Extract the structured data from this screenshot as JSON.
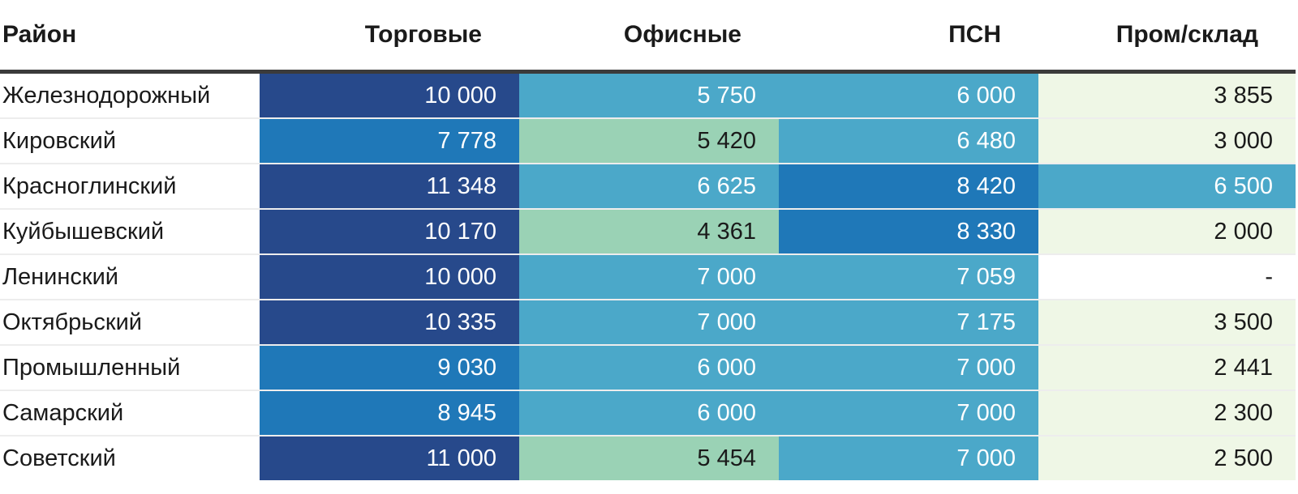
{
  "palette": {
    "navy": "#27498b",
    "blue": "#1f78b8",
    "teal": "#4ba8c9",
    "mint": "#9ad2b5",
    "pale": "#eff7e6",
    "blank": "#ffffff",
    "header_rule": "#3b3b3b",
    "text_dark": "#1a1a1a",
    "text_light": "#ffffff"
  },
  "table": {
    "columns": [
      "Район",
      "Торговые",
      "Офисные",
      "ПСН",
      "Пром/склад"
    ],
    "rows": [
      {
        "district": "Железнодорожный",
        "cells": [
          {
            "text": "10 000",
            "tone": "navy"
          },
          {
            "text": "5 750",
            "tone": "teal"
          },
          {
            "text": "6 000",
            "tone": "teal"
          },
          {
            "text": "3 855",
            "tone": "pale"
          }
        ]
      },
      {
        "district": "Кировский",
        "cells": [
          {
            "text": "7 778",
            "tone": "blue"
          },
          {
            "text": "5 420",
            "tone": "mint"
          },
          {
            "text": "6 480",
            "tone": "teal"
          },
          {
            "text": "3 000",
            "tone": "pale"
          }
        ]
      },
      {
        "district": "Красноглинский",
        "cells": [
          {
            "text": "11 348",
            "tone": "navy"
          },
          {
            "text": "6 625",
            "tone": "teal"
          },
          {
            "text": "8 420",
            "tone": "blue"
          },
          {
            "text": "6 500",
            "tone": "teal"
          }
        ]
      },
      {
        "district": "Куйбышевский",
        "cells": [
          {
            "text": "10 170",
            "tone": "navy"
          },
          {
            "text": "4 361",
            "tone": "mint"
          },
          {
            "text": "8 330",
            "tone": "blue"
          },
          {
            "text": "2 000",
            "tone": "pale"
          }
        ]
      },
      {
        "district": "Ленинский",
        "cells": [
          {
            "text": "10 000",
            "tone": "navy"
          },
          {
            "text": "7 000",
            "tone": "teal"
          },
          {
            "text": "7 059",
            "tone": "teal"
          },
          {
            "text": "-",
            "tone": "blank"
          }
        ]
      },
      {
        "district": "Октябрьский",
        "cells": [
          {
            "text": "10 335",
            "tone": "navy"
          },
          {
            "text": "7 000",
            "tone": "teal"
          },
          {
            "text": "7 175",
            "tone": "teal"
          },
          {
            "text": "3 500",
            "tone": "pale"
          }
        ]
      },
      {
        "district": "Промышленный",
        "cells": [
          {
            "text": "9 030",
            "tone": "blue"
          },
          {
            "text": "6 000",
            "tone": "teal"
          },
          {
            "text": "7 000",
            "tone": "teal"
          },
          {
            "text": "2 441",
            "tone": "pale"
          }
        ]
      },
      {
        "district": "Самарский",
        "cells": [
          {
            "text": "8 945",
            "tone": "blue"
          },
          {
            "text": "6 000",
            "tone": "teal"
          },
          {
            "text": "7 000",
            "tone": "teal"
          },
          {
            "text": "2 300",
            "tone": "pale"
          }
        ]
      },
      {
        "district": "Советский",
        "cells": [
          {
            "text": "11 000",
            "tone": "navy"
          },
          {
            "text": "5 454",
            "tone": "mint"
          },
          {
            "text": "7 000",
            "tone": "teal"
          },
          {
            "text": "2 500",
            "tone": "pale"
          }
        ]
      }
    ]
  },
  "chart_data": {
    "type": "heatmap",
    "title": "",
    "rows": [
      "Железнодорожный",
      "Кировский",
      "Красноглинский",
      "Куйбышевский",
      "Ленинский",
      "Октябрьский",
      "Промышленный",
      "Самарский",
      "Советский"
    ],
    "columns": [
      "Торговые",
      "Офисные",
      "ПСН",
      "Пром/склад"
    ],
    "values": [
      [
        10000,
        5750,
        6000,
        3855
      ],
      [
        7778,
        5420,
        6480,
        3000
      ],
      [
        11348,
        6625,
        8420,
        6500
      ],
      [
        10170,
        4361,
        8330,
        2000
      ],
      [
        10000,
        7000,
        7059,
        null
      ],
      [
        10335,
        7000,
        7175,
        3500
      ],
      [
        9030,
        6000,
        7000,
        2441
      ],
      [
        8945,
        6000,
        7000,
        2300
      ],
      [
        11000,
        5454,
        7000,
        2500
      ]
    ],
    "value_range": [
      2000,
      11348
    ],
    "legend_position": "none",
    "grid": false,
    "color_encoding": "higher value = darker blue; mid = teal; lower = mint/pale green; '-' (null) = white blank cell"
  }
}
